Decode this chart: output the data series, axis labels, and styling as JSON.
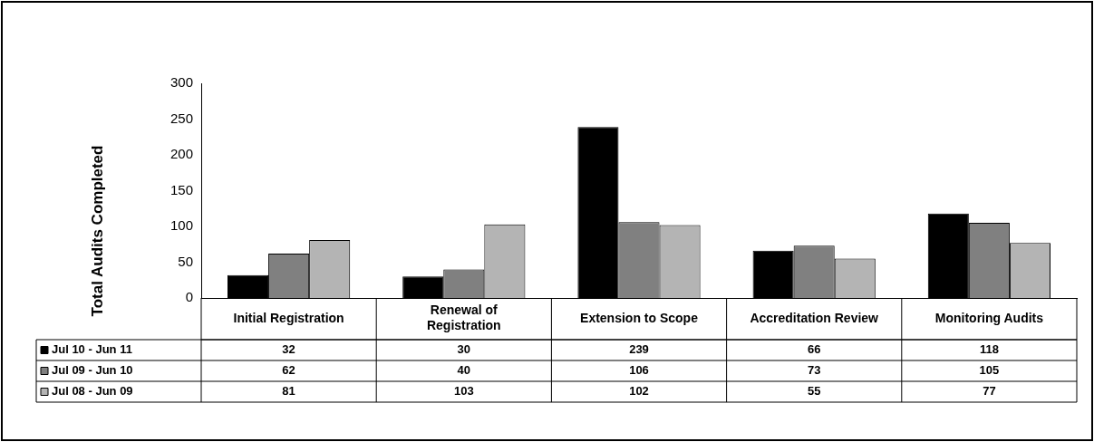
{
  "chart_data": {
    "type": "bar",
    "ylabel": "Total Audits Completed",
    "categories": [
      "Initial Registration",
      "Renewal of Registration",
      "Extension to Scope",
      "Accreditation Review",
      "Monitoring Audits"
    ],
    "series": [
      {
        "name": "Jul 10 - Jun 11",
        "color": "#000000",
        "values": [
          32,
          30,
          239,
          66,
          118
        ]
      },
      {
        "name": "Jul 09 - Jun 10",
        "color": "#808080",
        "values": [
          62,
          40,
          106,
          73,
          105
        ]
      },
      {
        "name": "Jul 08 - Jun 09",
        "color": "#b4b4b4",
        "values": [
          81,
          103,
          102,
          55,
          77
        ]
      }
    ],
    "ylim": [
      0,
      300
    ],
    "yticks": [
      0,
      50,
      100,
      150,
      200,
      250,
      300
    ],
    "grid": false,
    "legend": "bottom left",
    "data_labels": true
  }
}
